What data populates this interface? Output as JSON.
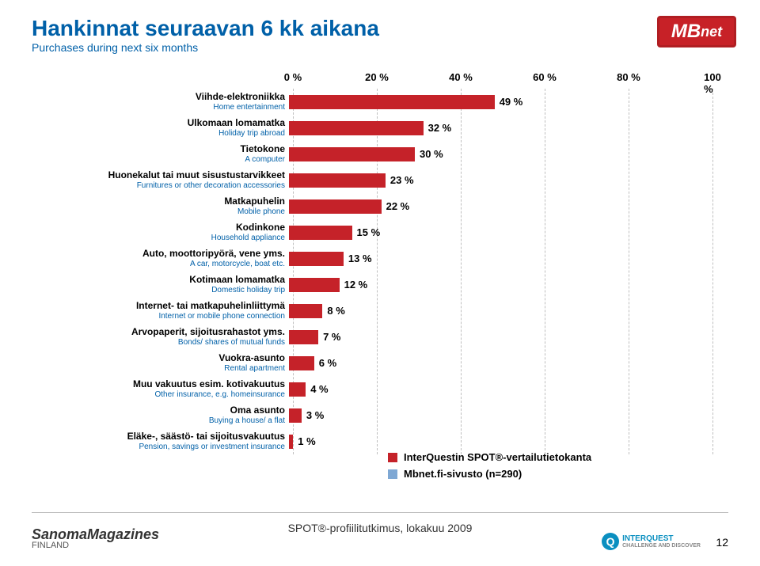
{
  "title": {
    "main": "Hankinnat seuraavan 6 kk aikana",
    "sub": "Purchases during next six months",
    "color": "#0060a8",
    "main_fontsize": 28,
    "sub_fontsize": 14
  },
  "logo_top": {
    "text_main": "MB",
    "text_sub": "net",
    "bg": "#c72127"
  },
  "chart": {
    "type": "bar-horizontal",
    "xlim": [
      0,
      100
    ],
    "xticks": [
      0,
      20,
      40,
      60,
      80,
      100
    ],
    "xtick_suffix": " %",
    "grid_color": "#bfbfbf",
    "bar_color": "#c52229",
    "value_suffix": " %",
    "label_fi_color": "#000000",
    "label_en_color": "#0060a8",
    "label_fi_fontsize": 12,
    "label_en_fontsize": 10,
    "rows": [
      {
        "fi": "Viihde-elektroniikka",
        "en": "Home entertainment",
        "value": 49
      },
      {
        "fi": "Ulkomaan lomamatka",
        "en": "Holiday trip abroad",
        "value": 32
      },
      {
        "fi": "Tietokone",
        "en": "A computer",
        "value": 30
      },
      {
        "fi": "Huonekalut tai muut sisustustarvikkeet",
        "en": "Furnitures or other decoration accessories",
        "value": 23
      },
      {
        "fi": "Matkapuhelin",
        "en": "Mobile phone",
        "value": 22
      },
      {
        "fi": "Kodinkone",
        "en": "Household appliance",
        "value": 15
      },
      {
        "fi": "Auto, moottoripyörä, vene yms.",
        "en": "A car, motorcycle, boat etc.",
        "value": 13
      },
      {
        "fi": "Kotimaan lomamatka",
        "en": "Domestic holiday trip",
        "value": 12
      },
      {
        "fi": "Internet- tai matkapuhelinliittymä",
        "en": "Internet or mobile phone connection",
        "value": 8
      },
      {
        "fi": "Arvopaperit, sijoitusrahastot yms.",
        "en": "Bonds/ shares of mutual funds",
        "value": 7
      },
      {
        "fi": "Vuokra-asunto",
        "en": "Rental apartment",
        "value": 6
      },
      {
        "fi": "Muu vakuutus esim. kotivakuutus",
        "en": "Other insurance, e.g. homeinsurance",
        "value": 4
      },
      {
        "fi": "Oma asunto",
        "en": "Buying a house/ a flat",
        "value": 3
      },
      {
        "fi": "Eläke-, säästö- tai sijoitusvakuutus",
        "en": "Pension, savings or investment insurance",
        "value": 1
      }
    ]
  },
  "legend": {
    "items": [
      {
        "color": "#c52229",
        "label": "InterQuestin SPOT®-vertailutietokanta"
      },
      {
        "color": "#7fa8d4",
        "label": "Mbnet.fi-sivusto (n=290)"
      }
    ]
  },
  "footer": {
    "center": "SPOT®-profiilitutkimus, lokakuu 2009",
    "page": "12",
    "sanoma_main": "SanomaMagazines",
    "sanoma_sub": "FINLAND",
    "iq_main": "INTERQUEST",
    "iq_sub": "CHALLENGE AND DISCOVER",
    "iq_badge": "Q"
  }
}
